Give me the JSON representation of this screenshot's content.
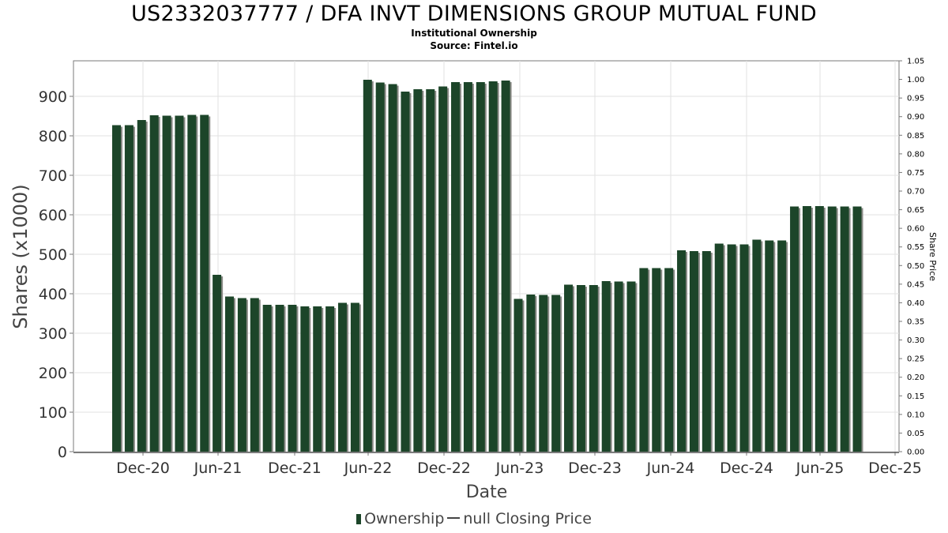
{
  "header": {
    "title": "US2332037777 / DFA INVT DIMENSIONS GROUP MUTUAL FUND",
    "subtitle1": "Institutional Ownership",
    "subtitle2": "Source: Fintel.io"
  },
  "legend": {
    "ownership": "Ownership",
    "price": "null Closing Price"
  },
  "colors": {
    "bar": "#1c4529",
    "bar_shadow": "#8a8a86",
    "grid": "#e2e2e2",
    "axis": "#7a7a7a"
  },
  "chart_data": {
    "type": "bar",
    "xlabel": "Date",
    "ylabel": "Shares (x1000)",
    "y2label": "Share Price",
    "ylim": [
      0,
      990
    ],
    "y2lim": [
      0,
      1.05
    ],
    "yticks": [
      "0",
      "100",
      "200",
      "300",
      "400",
      "500",
      "600",
      "700",
      "800",
      "900"
    ],
    "y2ticks": [
      "0.00",
      "0.05",
      "0.10",
      "0.15",
      "0.20",
      "0.25",
      "0.30",
      "0.35",
      "0.40",
      "0.45",
      "0.50",
      "0.55",
      "0.60",
      "0.65",
      "0.70",
      "0.75",
      "0.80",
      "0.85",
      "0.90",
      "0.95",
      "1.00",
      "1.05"
    ],
    "xticks": [
      "Dec-20",
      "Jun-21",
      "Dec-21",
      "Jun-22",
      "Dec-22",
      "Jun-23",
      "Dec-23",
      "Jun-24",
      "Dec-24",
      "Jun-25",
      "Dec-25"
    ],
    "grid": true,
    "legend_position": "bottom",
    "series": [
      {
        "name": "Ownership",
        "values": [
          827,
          827,
          840,
          852,
          851,
          851,
          853,
          853,
          448,
          393,
          389,
          389,
          372,
          372,
          372,
          368,
          368,
          368,
          377,
          377,
          942,
          935,
          931,
          912,
          918,
          918,
          925,
          936,
          936,
          936,
          938,
          940,
          387,
          398,
          397,
          397,
          423,
          422,
          422,
          432,
          431,
          431,
          465,
          465,
          465,
          510,
          508,
          508,
          527,
          525,
          525,
          537,
          535,
          535,
          621,
          622,
          622,
          621,
          621,
          621
        ]
      }
    ]
  }
}
